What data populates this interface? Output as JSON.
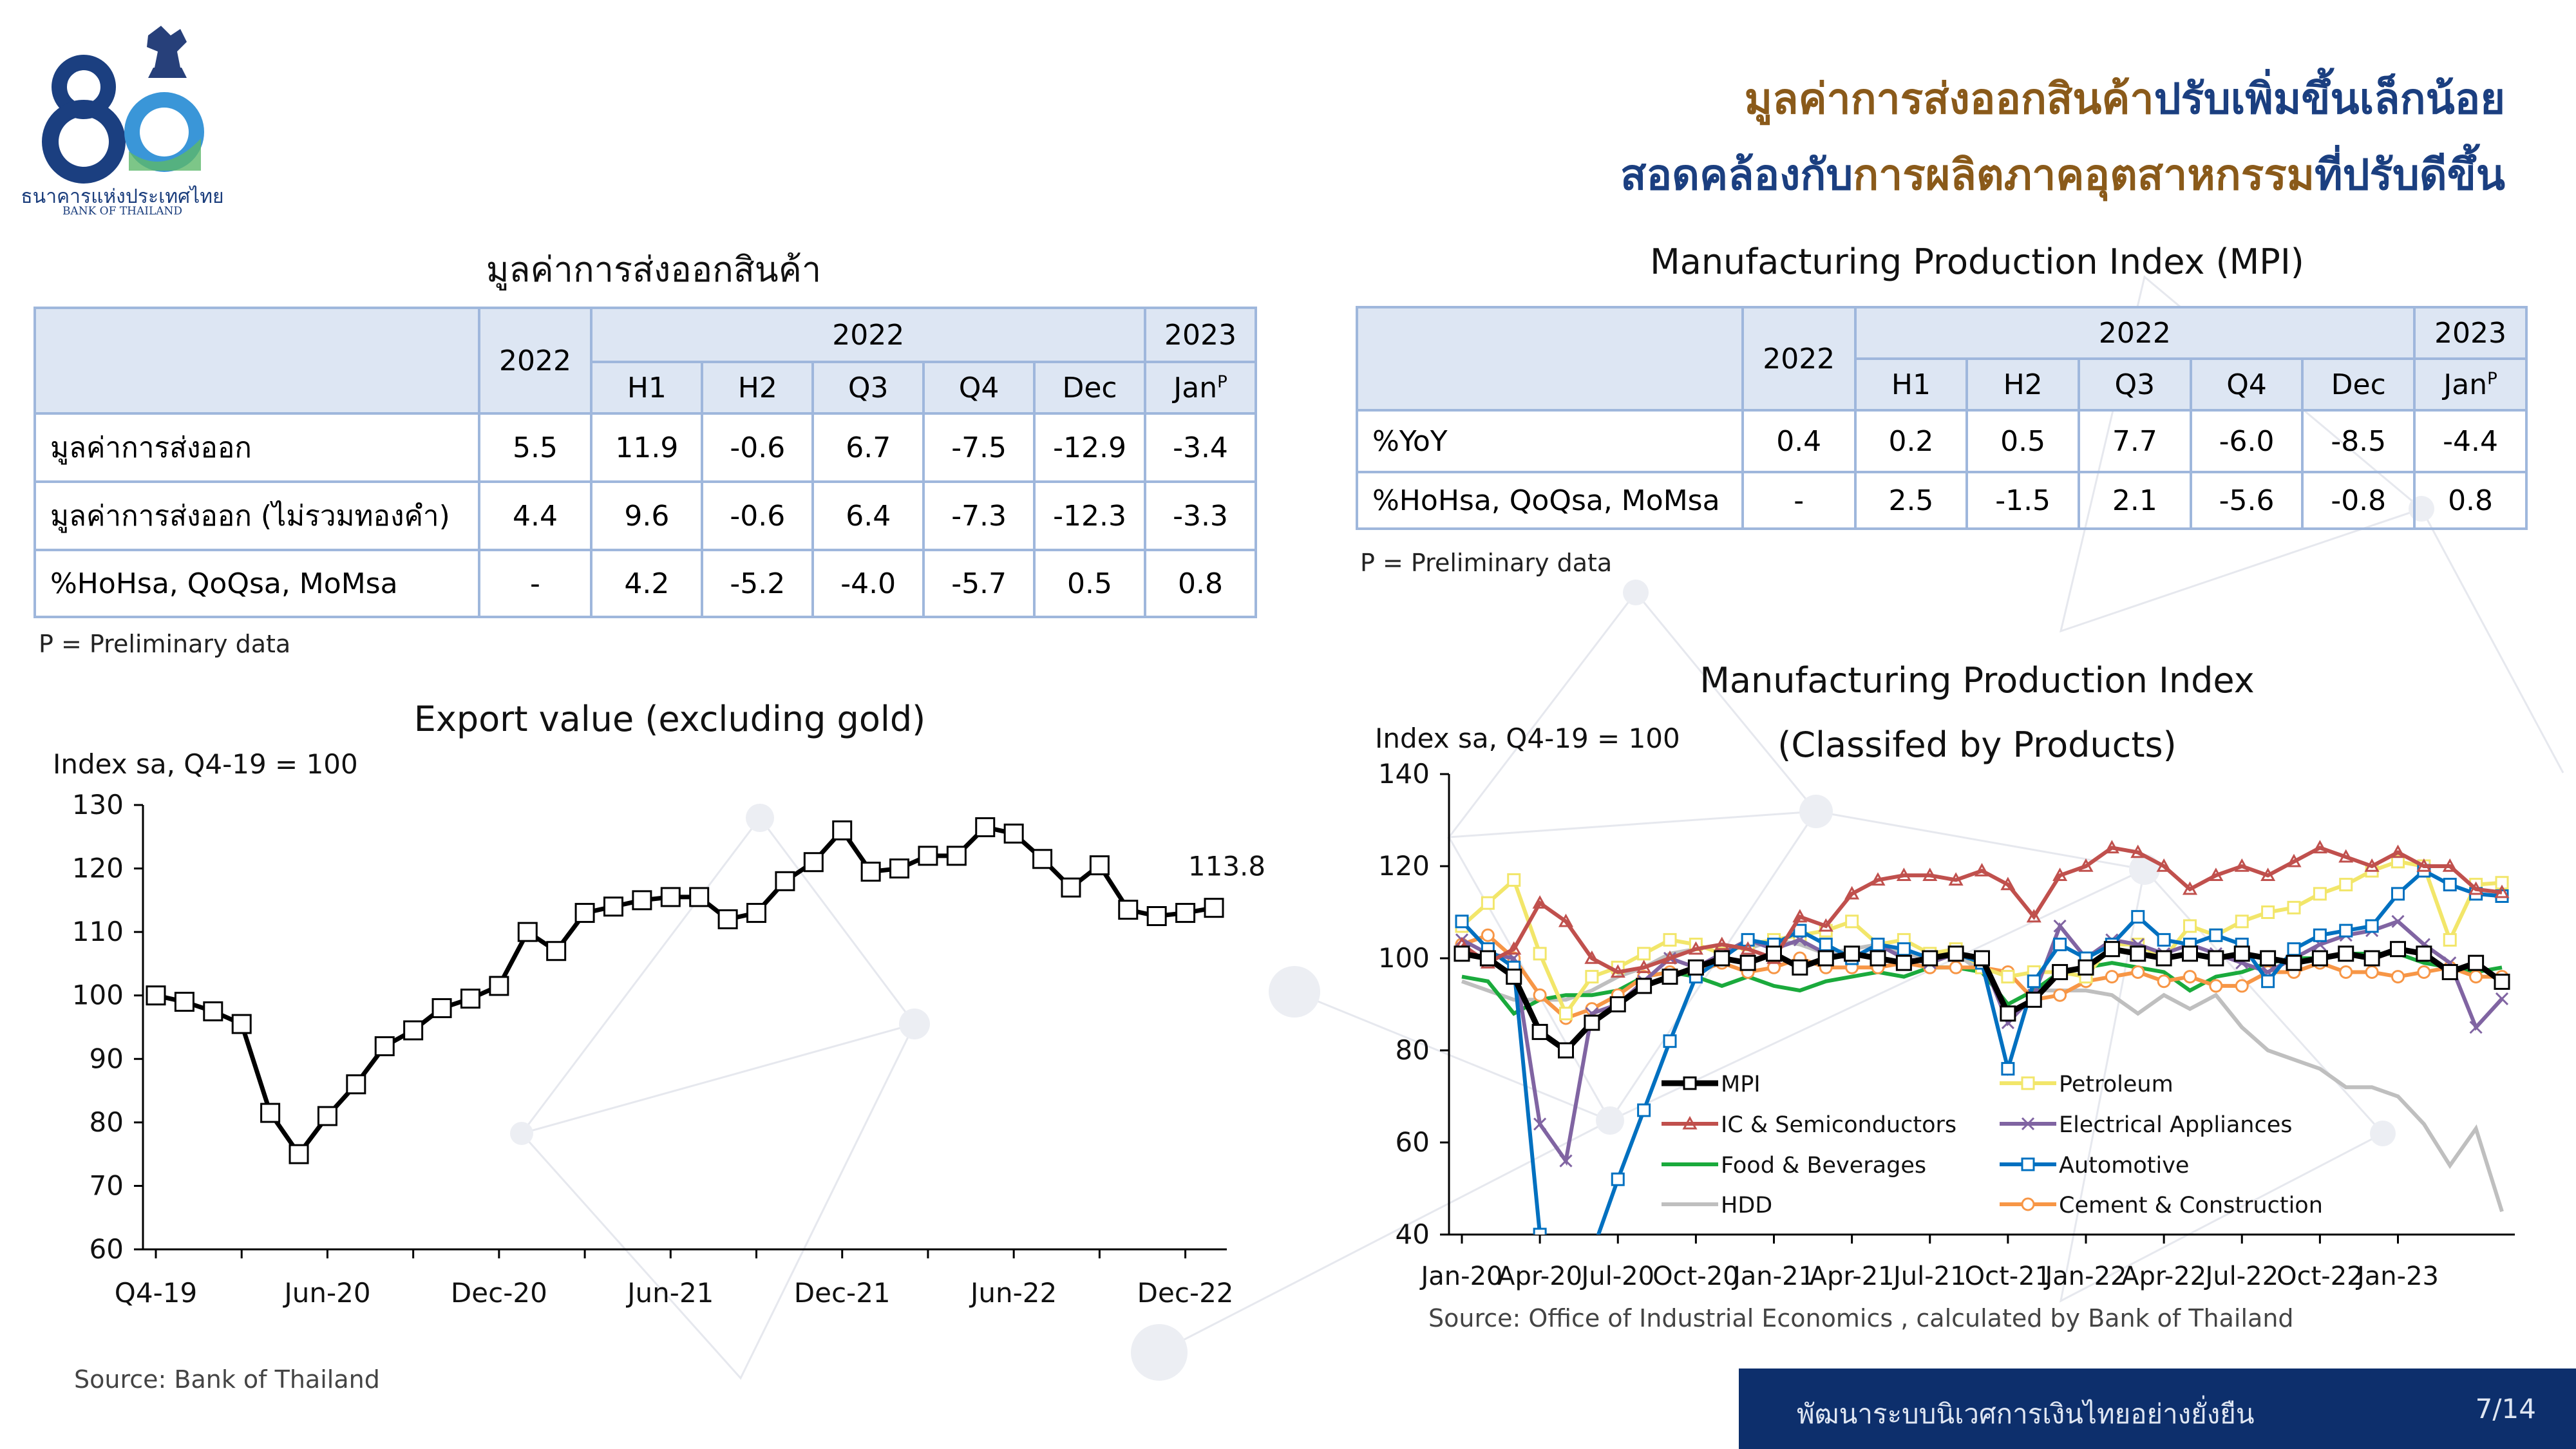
{
  "logo": {
    "text_th": "ธนาคารแห่งประเทศไทย",
    "text_en": "BANK OF THAILAND"
  },
  "headline": {
    "line1": [
      {
        "text": "มูลค่าการส่งออกสินค้า",
        "color": "#8a5a1a"
      },
      {
        "text": "ปรับเพิ่มขึ้นเล็กน้อย",
        "color": "#1b3f80"
      }
    ],
    "line2": [
      {
        "text": "สอดคล้องกับ",
        "color": "#1b3f80"
      },
      {
        "text": "การผลิตภาคอุตสาหกรรม",
        "color": "#8a5a1a"
      },
      {
        "text": "ที่ปรับดีขึ้น",
        "color": "#1b3f80"
      }
    ]
  },
  "export_table": {
    "title": "มูลค่าการส่งออกสินค้า",
    "year_a": "2022",
    "year_b": "2022",
    "year_c": "2023",
    "cols": [
      "H1",
      "H2",
      "Q3",
      "Q4",
      "Dec",
      "Jan"
    ],
    "superscript": "P",
    "rows": [
      {
        "label": "มูลค่าการส่งออก",
        "values": [
          "5.5",
          "11.9",
          "-0.6",
          "6.7",
          "-7.5",
          "-12.9",
          "-3.4"
        ]
      },
      {
        "label": "มูลค่าการส่งออก (ไม่รวมทองคำ)",
        "values": [
          "4.4",
          "9.6",
          "-0.6",
          "6.4",
          "-7.3",
          "-12.3",
          "-3.3"
        ]
      },
      {
        "label": "%HoHsa, QoQsa, MoMsa",
        "values": [
          "-",
          "4.2",
          "-5.2",
          "-4.0",
          "-5.7",
          "0.5",
          "0.8"
        ]
      }
    ],
    "note": "P = Preliminary data"
  },
  "mpi_table": {
    "title": "Manufacturing Production Index (MPI)",
    "year_a": "2022",
    "year_b": "2022",
    "year_c": "2023",
    "cols": [
      "H1",
      "H2",
      "Q3",
      "Q4",
      "Dec",
      "Jan"
    ],
    "superscript": "P",
    "rows": [
      {
        "label": "%YoY",
        "values": [
          "0.4",
          "0.2",
          "0.5",
          "7.7",
          "-6.0",
          "-8.5",
          "-4.4"
        ]
      },
      {
        "label": "%HoHsa, QoQsa, MoMsa",
        "values": [
          "-",
          "2.5",
          "-1.5",
          "2.1",
          "-5.6",
          "-0.8",
          "0.8"
        ]
      }
    ],
    "note": "P = Preliminary data"
  },
  "chart_data": [
    {
      "type": "line",
      "title": "Export value (excluding gold)",
      "ylabel": "Index sa, Q4-19 = 100",
      "ylim": [
        60,
        130
      ],
      "yticks": [
        60,
        70,
        80,
        90,
        100,
        110,
        120,
        130
      ],
      "x_tick_labels": [
        "Q4-19",
        "Jun-20",
        "Dec-20",
        "Jun-21",
        "Dec-21",
        "Jun-22",
        "Dec-22"
      ],
      "x_tick_index": [
        0,
        6,
        12,
        18,
        24,
        30,
        36
      ],
      "annotation": "113.8",
      "source": "Source: Bank of Thailand",
      "series": [
        {
          "values": [
            100,
            99,
            97.5,
            95.5,
            81.5,
            75,
            81,
            86,
            92,
            94.5,
            98,
            99.5,
            101.5,
            110,
            107,
            113,
            114,
            115,
            115.5,
            115.5,
            112,
            113,
            118,
            121,
            126,
            119.5,
            120,
            122,
            122,
            126.5,
            125.5,
            121.5,
            117,
            120.5,
            113.5,
            112.5,
            113,
            113.8
          ],
          "color": "#000000"
        }
      ]
    },
    {
      "type": "line",
      "title": "Manufacturing Production Index",
      "subtitle": "(Classifed by Products)",
      "ylabel": "Index sa, Q4-19 = 100",
      "ylim": [
        40,
        140
      ],
      "yticks": [
        40,
        60,
        80,
        100,
        120,
        140
      ],
      "x_tick_labels": [
        "Jan-20",
        "Apr-20",
        "Jul-20",
        "Oct-20",
        "Jan-21",
        "Apr-21",
        "Jul-21",
        "Oct-21",
        "Jan-22",
        "Apr-22",
        "Jul-22",
        "Oct-22",
        "Jan-23"
      ],
      "x_tick_index": [
        0,
        3,
        6,
        9,
        12,
        15,
        18,
        21,
        24,
        27,
        30,
        33,
        36
      ],
      "source": "Source: Office of Industrial Economics , calculated by Bank of Thailand",
      "series": [
        {
          "name": "MPI",
          "color": "#000000",
          "marker": "square",
          "values": [
            101,
            100,
            96,
            84,
            80,
            86,
            90,
            94,
            96,
            98,
            100,
            99,
            101,
            98,
            100,
            101,
            100,
            99,
            100,
            101,
            100,
            88,
            91,
            97,
            98,
            102,
            101,
            100,
            101,
            100,
            101,
            100,
            99,
            100,
            101,
            100,
            102,
            101,
            97,
            99,
            94.9
          ]
        },
        {
          "name": "Petroleum",
          "color": "#f2e66a",
          "marker": "square",
          "values": [
            107,
            112,
            117,
            101,
            88,
            96,
            98,
            101,
            104,
            103,
            101,
            103,
            104,
            105,
            106,
            108,
            103,
            104,
            101,
            102,
            98,
            96,
            97,
            97,
            96,
            103,
            103,
            100,
            107,
            105,
            108,
            110,
            111,
            114,
            116,
            119,
            121,
            120,
            104,
            116,
            116.4
          ]
        },
        {
          "name": "IC & Semiconductors",
          "color": "#c0504d",
          "marker": "triangle",
          "values": [
            103,
            99,
            102,
            112,
            108,
            100,
            97,
            98,
            100,
            102,
            103,
            102,
            100,
            109,
            107,
            114,
            117,
            118,
            118,
            117,
            119,
            116,
            109,
            118,
            120,
            124,
            123,
            120,
            115,
            118,
            120,
            118,
            121,
            124,
            122,
            120,
            123,
            120,
            120,
            115,
            114.3
          ]
        },
        {
          "name": "Electrical Appliances",
          "color": "#8064a2",
          "marker": "x",
          "values": [
            104,
            101,
            100,
            64,
            56,
            88,
            90,
            95,
            100,
            98,
            101,
            104,
            102,
            104,
            101,
            100,
            103,
            100,
            99,
            101,
            100,
            86,
            92,
            107,
            100,
            104,
            103,
            101,
            103,
            101,
            99,
            97,
            100,
            103,
            105,
            106,
            108,
            103,
            99,
            85,
            91.2
          ]
        },
        {
          "name": "Food & Beverages",
          "color": "#1aaa3c",
          "marker": "none",
          "values": [
            96,
            95,
            88,
            91,
            92,
            92,
            93,
            96,
            97,
            96,
            94,
            96,
            94,
            93,
            95,
            96,
            97,
            96,
            98,
            98,
            97,
            90,
            93,
            97,
            98,
            99,
            98,
            97,
            93,
            96,
            97,
            99,
            100,
            100,
            101,
            101,
            101,
            99,
            98,
            97,
            98
          ]
        },
        {
          "name": "Automotive",
          "color": "#0070c0",
          "marker": "square",
          "values": [
            108,
            102,
            98,
            40,
            20,
            36,
            52,
            67,
            82,
            96,
            100,
            104,
            103,
            106,
            103,
            100,
            103,
            102,
            100,
            101,
            99,
            76,
            95,
            103,
            100,
            103,
            109,
            104,
            103,
            105,
            103,
            95,
            102,
            105,
            106,
            107,
            114,
            119,
            116,
            114,
            113.5
          ]
        },
        {
          "name": "HDD",
          "color": "#bfbfbf",
          "marker": "none",
          "values": [
            95,
            93,
            91,
            91,
            91,
            93,
            96,
            98,
            101,
            102,
            103,
            102,
            104,
            103,
            101,
            102,
            103,
            101,
            100,
            101,
            97,
            90,
            93,
            93,
            93,
            92,
            88,
            92,
            89,
            92,
            85,
            80,
            78,
            76,
            72,
            72,
            70,
            64,
            55,
            63,
            45
          ]
        },
        {
          "name": "Cement & Construction",
          "color": "#f79646",
          "marker": "circle",
          "values": [
            103,
            105,
            100,
            92,
            87,
            89,
            92,
            96,
            97,
            97,
            99,
            97,
            98,
            100,
            98,
            98,
            98,
            99,
            98,
            98,
            98,
            97,
            91,
            92,
            95,
            96,
            97,
            95,
            96,
            94,
            94,
            97,
            97,
            99,
            97,
            97,
            96,
            97,
            98,
            96,
            96
          ]
        }
      ]
    }
  ],
  "footer": {
    "tagline": "พัฒนาระบบนิเวศการเงินไทยอย่างยั่งยืน",
    "page": "7/14"
  }
}
